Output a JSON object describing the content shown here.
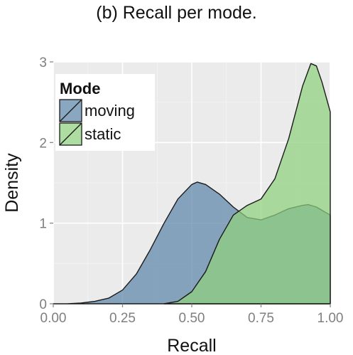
{
  "caption": "(b) Recall per mode.",
  "chart_data": {
    "type": "area",
    "subtype": "density",
    "xlabel": "Recall",
    "ylabel": "Density",
    "xlim": [
      0,
      1
    ],
    "ylim": [
      0,
      3
    ],
    "x_ticks": [
      "0.00",
      "0.25",
      "0.50",
      "0.75",
      "1.00"
    ],
    "y_ticks": [
      "0",
      "1",
      "2",
      "3"
    ],
    "grid": true,
    "background": "#ebebeb",
    "legend": {
      "title": "Mode",
      "placement": "top-left",
      "entries": [
        "moving",
        "static"
      ]
    },
    "series": [
      {
        "name": "moving",
        "color": "#5b85a8",
        "x": [
          0.0,
          0.05,
          0.1,
          0.15,
          0.2,
          0.25,
          0.3,
          0.35,
          0.4,
          0.45,
          0.5,
          0.52,
          0.55,
          0.6,
          0.65,
          0.7,
          0.75,
          0.8,
          0.85,
          0.9,
          0.92,
          0.95,
          1.0
        ],
        "values": [
          0.0,
          0.0,
          0.01,
          0.03,
          0.07,
          0.17,
          0.37,
          0.67,
          1.0,
          1.3,
          1.48,
          1.51,
          1.48,
          1.36,
          1.2,
          1.07,
          1.04,
          1.1,
          1.18,
          1.22,
          1.23,
          1.2,
          1.1
        ]
      },
      {
        "name": "static",
        "color": "#8fd07d",
        "x": [
          0.4,
          0.45,
          0.5,
          0.55,
          0.6,
          0.65,
          0.7,
          0.75,
          0.8,
          0.85,
          0.9,
          0.93,
          0.95,
          0.97,
          1.0
        ],
        "values": [
          0.0,
          0.03,
          0.15,
          0.4,
          0.8,
          1.1,
          1.22,
          1.3,
          1.55,
          2.05,
          2.7,
          2.98,
          2.95,
          2.75,
          2.38
        ]
      }
    ]
  }
}
